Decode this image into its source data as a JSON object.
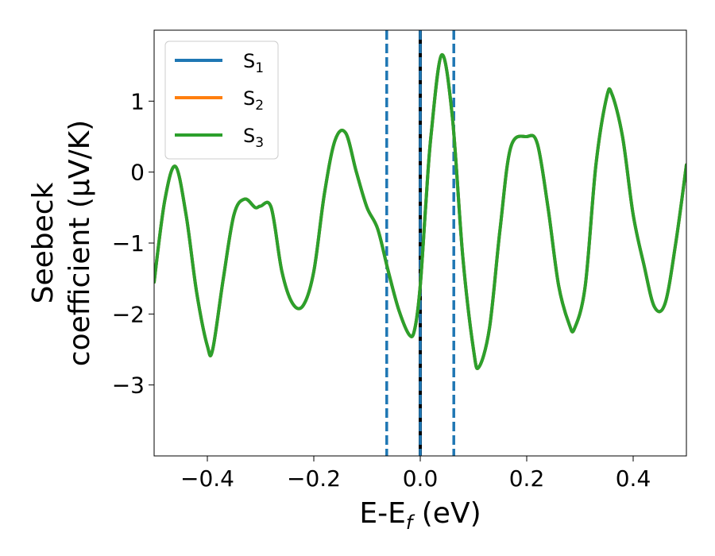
{
  "chart_data": {
    "type": "line",
    "xlabel": "E-E",
    "xlabel_sub": "f",
    "xlabel_unit": " (eV)",
    "ylabel_line1": "Seebeck",
    "ylabel_line2": "coefficient  (μV/K)",
    "xlim": [
      -0.5,
      0.5
    ],
    "ylim": [
      -4.0,
      2.0
    ],
    "xticks": [
      -0.4,
      -0.2,
      0.0,
      0.2,
      0.4
    ],
    "xtick_labels": [
      "−0.4",
      "−0.2",
      "0.0",
      "0.2",
      "0.4"
    ],
    "yticks": [
      -3,
      -2,
      -1,
      0,
      1
    ],
    "ytick_labels": [
      "−3",
      "−2",
      "−1",
      "0",
      "1"
    ],
    "grid": false,
    "legend_position": "top-left",
    "vlines": [
      {
        "x": -0.063,
        "style": "dashed",
        "color": "#1f77b4"
      },
      {
        "x": 0.063,
        "style": "dashed",
        "color": "#1f77b4"
      },
      {
        "x": 0.0,
        "style": "solid",
        "color": "#000000"
      },
      {
        "x": 0.0,
        "style": "dashed",
        "color": "#1f77b4"
      }
    ],
    "series": [
      {
        "name": "S",
        "name_sub": "1",
        "color": "#1f77b4",
        "visible_line": false,
        "x": [
          -0.5,
          -0.48,
          -0.46,
          -0.44,
          -0.42,
          -0.4,
          -0.39,
          -0.37,
          -0.35,
          -0.33,
          -0.31,
          -0.3,
          -0.28,
          -0.26,
          -0.24,
          -0.22,
          -0.2,
          -0.18,
          -0.16,
          -0.14,
          -0.12,
          -0.1,
          -0.08,
          -0.06,
          -0.04,
          -0.02,
          -0.01,
          0.0,
          0.01,
          0.02,
          0.04,
          0.06,
          0.08,
          0.1,
          0.11,
          0.13,
          0.15,
          0.17,
          0.2,
          0.22,
          0.24,
          0.26,
          0.28,
          0.29,
          0.31,
          0.33,
          0.35,
          0.36,
          0.38,
          0.4,
          0.42,
          0.44,
          0.46,
          0.48,
          0.5
        ],
        "y": [
          -1.55,
          -0.4,
          0.08,
          -0.6,
          -1.7,
          -2.45,
          -2.5,
          -1.5,
          -0.6,
          -0.38,
          -0.5,
          -0.48,
          -0.5,
          -1.4,
          -1.85,
          -1.88,
          -1.4,
          -0.3,
          0.45,
          0.55,
          0.0,
          -0.5,
          -0.8,
          -1.4,
          -1.95,
          -2.3,
          -2.2,
          -1.6,
          -0.5,
          0.5,
          1.65,
          0.8,
          -1.2,
          -2.5,
          -2.75,
          -2.2,
          -0.8,
          0.35,
          0.5,
          0.4,
          -0.5,
          -1.6,
          -2.15,
          -2.2,
          -1.6,
          0.1,
          1.05,
          1.1,
          0.5,
          -0.6,
          -1.3,
          -1.9,
          -1.85,
          -1.0,
          0.1
        ]
      },
      {
        "name": "S",
        "name_sub": "2",
        "color": "#ff7f0e",
        "visible_line": false,
        "x": [
          -0.5,
          -0.48,
          -0.46,
          -0.44,
          -0.42,
          -0.4,
          -0.39,
          -0.37,
          -0.35,
          -0.33,
          -0.31,
          -0.3,
          -0.28,
          -0.26,
          -0.24,
          -0.22,
          -0.2,
          -0.18,
          -0.16,
          -0.14,
          -0.12,
          -0.1,
          -0.08,
          -0.06,
          -0.04,
          -0.02,
          -0.01,
          0.0,
          0.01,
          0.02,
          0.04,
          0.06,
          0.08,
          0.1,
          0.11,
          0.13,
          0.15,
          0.17,
          0.2,
          0.22,
          0.24,
          0.26,
          0.28,
          0.29,
          0.31,
          0.33,
          0.35,
          0.36,
          0.38,
          0.4,
          0.42,
          0.44,
          0.46,
          0.48,
          0.5
        ],
        "y": [
          -1.55,
          -0.4,
          0.08,
          -0.6,
          -1.7,
          -2.45,
          -2.5,
          -1.5,
          -0.6,
          -0.38,
          -0.5,
          -0.48,
          -0.5,
          -1.4,
          -1.85,
          -1.88,
          -1.4,
          -0.3,
          0.45,
          0.55,
          0.0,
          -0.5,
          -0.8,
          -1.4,
          -1.95,
          -2.3,
          -2.2,
          -1.6,
          -0.5,
          0.5,
          1.65,
          0.8,
          -1.2,
          -2.5,
          -2.75,
          -2.2,
          -0.8,
          0.35,
          0.5,
          0.4,
          -0.5,
          -1.6,
          -2.15,
          -2.2,
          -1.6,
          0.1,
          1.05,
          1.1,
          0.5,
          -0.6,
          -1.3,
          -1.9,
          -1.85,
          -1.0,
          0.1
        ]
      },
      {
        "name": "S",
        "name_sub": "3",
        "color": "#2ca02c",
        "visible_line": true,
        "x": [
          -0.5,
          -0.48,
          -0.46,
          -0.44,
          -0.42,
          -0.4,
          -0.39,
          -0.37,
          -0.35,
          -0.33,
          -0.31,
          -0.3,
          -0.28,
          -0.26,
          -0.24,
          -0.22,
          -0.2,
          -0.18,
          -0.16,
          -0.14,
          -0.12,
          -0.1,
          -0.08,
          -0.06,
          -0.04,
          -0.02,
          -0.01,
          0.0,
          0.01,
          0.02,
          0.04,
          0.06,
          0.08,
          0.1,
          0.11,
          0.13,
          0.15,
          0.17,
          0.2,
          0.22,
          0.24,
          0.26,
          0.28,
          0.29,
          0.31,
          0.33,
          0.35,
          0.36,
          0.38,
          0.4,
          0.42,
          0.44,
          0.46,
          0.48,
          0.5
        ],
        "y": [
          -1.55,
          -0.4,
          0.08,
          -0.6,
          -1.7,
          -2.45,
          -2.5,
          -1.5,
          -0.6,
          -0.38,
          -0.5,
          -0.48,
          -0.5,
          -1.4,
          -1.85,
          -1.88,
          -1.4,
          -0.3,
          0.45,
          0.55,
          0.0,
          -0.5,
          -0.8,
          -1.4,
          -1.95,
          -2.3,
          -2.2,
          -1.6,
          -0.5,
          0.5,
          1.65,
          0.8,
          -1.2,
          -2.5,
          -2.75,
          -2.2,
          -0.8,
          0.35,
          0.5,
          0.4,
          -0.5,
          -1.6,
          -2.15,
          -2.2,
          -1.6,
          0.1,
          1.05,
          1.1,
          0.5,
          -0.6,
          -1.3,
          -1.9,
          -1.85,
          -1.0,
          0.1
        ]
      }
    ]
  }
}
